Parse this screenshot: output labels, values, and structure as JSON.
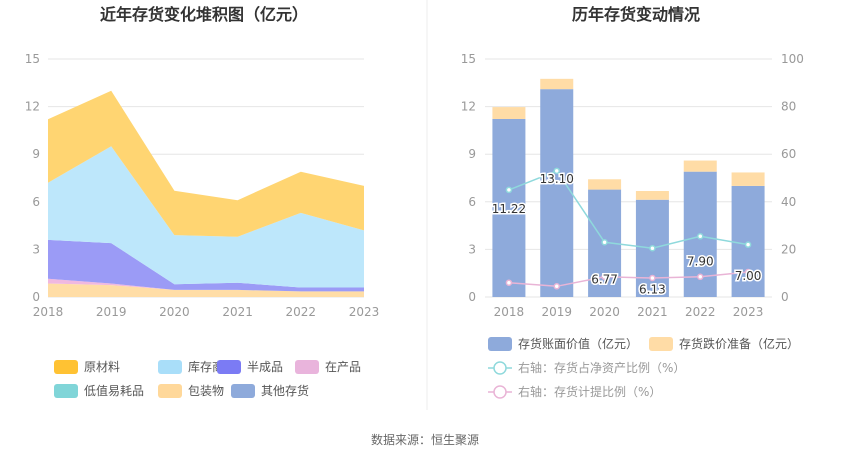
{
  "source_text": "数据来源：恒生聚源",
  "chart_data": [
    {
      "type": "area",
      "stacked": true,
      "title": "近年存货变化堆积图（亿元）",
      "x": [
        "2018",
        "2019",
        "2020",
        "2021",
        "2022",
        "2023"
      ],
      "ylim": [
        0,
        15
      ],
      "yticks": [
        "0",
        "3",
        "6",
        "9",
        "12",
        "15"
      ],
      "grid": true,
      "legend_position": "bottom",
      "series": [
        {
          "name": "其他存货",
          "color": "#8eaadb",
          "values": [
            0.0,
            0.0,
            0.0,
            0.0,
            0.0,
            0.0
          ]
        },
        {
          "name": "包装物",
          "color": "#ffdda6",
          "values": [
            0.85,
            0.75,
            0.45,
            0.45,
            0.35,
            0.35
          ]
        },
        {
          "name": "低值易耗品",
          "color": "#80d5d8",
          "values": [
            0.0,
            0.0,
            0.0,
            0.0,
            0.0,
            0.0
          ]
        },
        {
          "name": "在产品",
          "color": "#f0b8e0",
          "values": [
            0.3,
            0.1,
            0.0,
            0.0,
            0.0,
            0.0
          ]
        },
        {
          "name": "半成品",
          "color": "#9b9bf6",
          "values": [
            2.45,
            2.55,
            0.35,
            0.45,
            0.25,
            0.25
          ]
        },
        {
          "name": "库存商品",
          "color": "#bde7fb",
          "values": [
            3.6,
            6.1,
            3.1,
            2.9,
            4.7,
            3.6
          ]
        },
        {
          "name": "原材料",
          "color": "#ffd572",
          "values": [
            4.0,
            3.5,
            2.8,
            2.3,
            2.6,
            2.8
          ]
        }
      ],
      "legend": [
        {
          "name": "原材料",
          "color": "#ffc233"
        },
        {
          "name": "库存商品",
          "color": "#a9def9"
        },
        {
          "name": "半成品",
          "color": "#7b7bf4"
        },
        {
          "name": "在产品",
          "color": "#e9b4dc"
        },
        {
          "name": "低值易耗品",
          "color": "#80d5d8"
        },
        {
          "name": "包装物",
          "color": "#ffd89a"
        },
        {
          "name": "其他存货",
          "color": "#8eaadb"
        }
      ]
    },
    {
      "type": "bar",
      "stacked": true,
      "title": "历年存货变动情况",
      "categories": [
        "2018",
        "2019",
        "2020",
        "2021",
        "2022",
        "2023"
      ],
      "ylim": [
        0,
        15
      ],
      "yticks": [
        "0",
        "3",
        "6",
        "9",
        "12",
        "15"
      ],
      "y2lim": [
        0,
        100
      ],
      "y2ticks": [
        "0",
        "20",
        "40",
        "60",
        "80",
        "100"
      ],
      "grid": true,
      "legend_position": "bottom",
      "series": [
        {
          "name": "存货账面价值（亿元）",
          "color": "#8eaadb",
          "values": [
            11.22,
            13.1,
            6.77,
            6.13,
            7.9,
            7.0
          ],
          "labels": [
            "11.22",
            "13.10",
            "6.77",
            "6.13",
            "7.90",
            "7.00"
          ]
        },
        {
          "name": "存货跌价准备（亿元）",
          "color": "#ffdca6",
          "values": [
            0.75,
            0.65,
            0.65,
            0.55,
            0.7,
            0.85
          ]
        }
      ],
      "line_series": [
        {
          "name": "右轴：存货占净资产比例（%）",
          "color": "#8fd9dc",
          "axis": "right",
          "values": [
            45,
            53,
            23,
            20.5,
            25.5,
            22
          ]
        },
        {
          "name": "右轴：存货计提比例（%）",
          "color": "#e9b4d6",
          "axis": "right",
          "values": [
            6,
            4.5,
            8.5,
            8,
            8.5,
            10.5
          ]
        }
      ]
    }
  ]
}
